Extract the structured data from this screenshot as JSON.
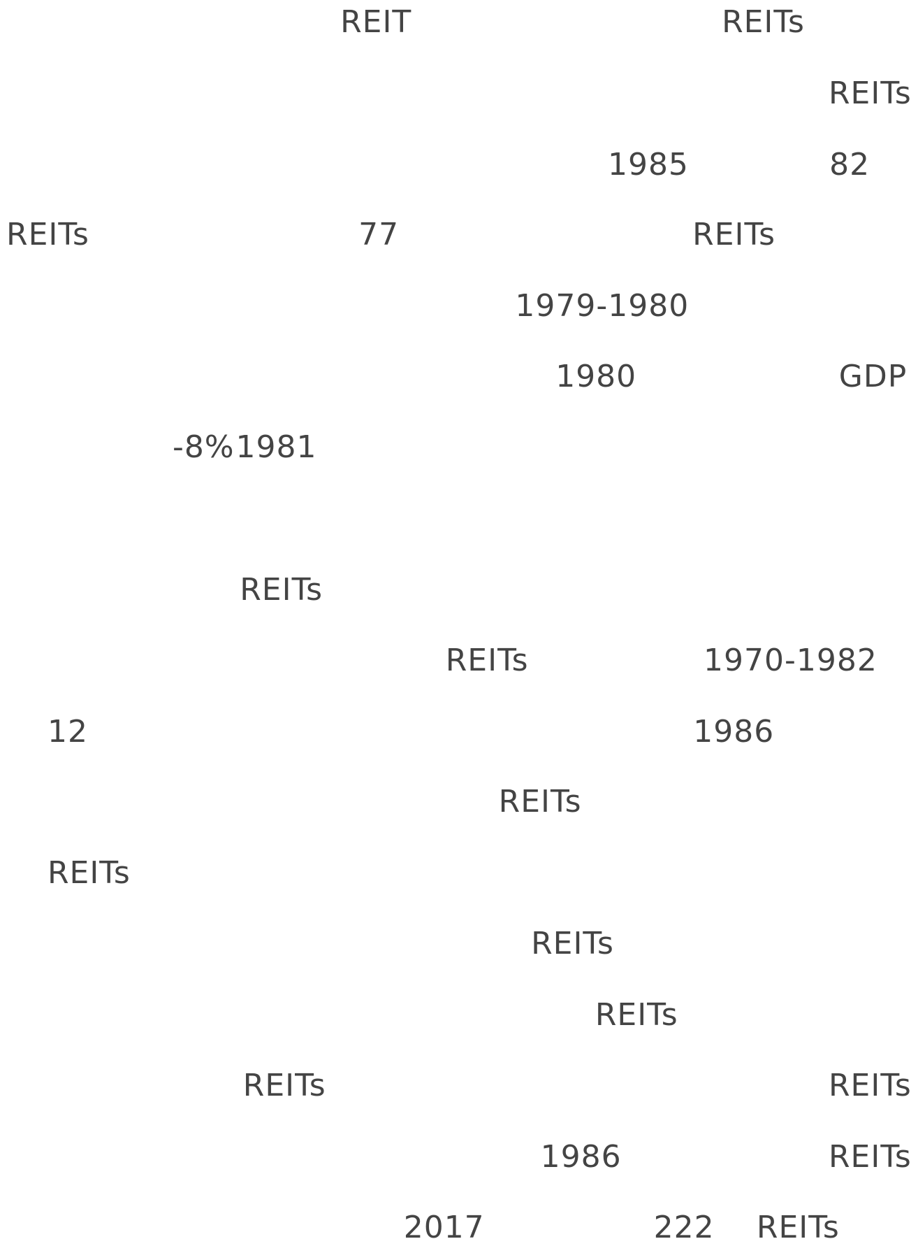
{
  "lines": [
    [
      "REIT",
      "REITs"
    ],
    [
      "REITs"
    ],
    [
      "1985",
      "82"
    ],
    [
      "REITs",
      "77",
      "REITs"
    ],
    [
      "1979-1980"
    ],
    [
      "1980",
      "GDP"
    ],
    [
      "-8%",
      "1981"
    ],
    [
      "REITs"
    ],
    [
      "REITs",
      "1970-1982"
    ],
    [
      "12",
      "1986"
    ],
    [
      "REITs"
    ],
    [
      "REITs"
    ],
    [
      "REITs"
    ],
    [
      "REITs"
    ],
    [
      "REITs",
      "REITs"
    ],
    [
      "1986",
      "REITs"
    ],
    [
      "2017",
      "222",
      "REITs"
    ]
  ]
}
